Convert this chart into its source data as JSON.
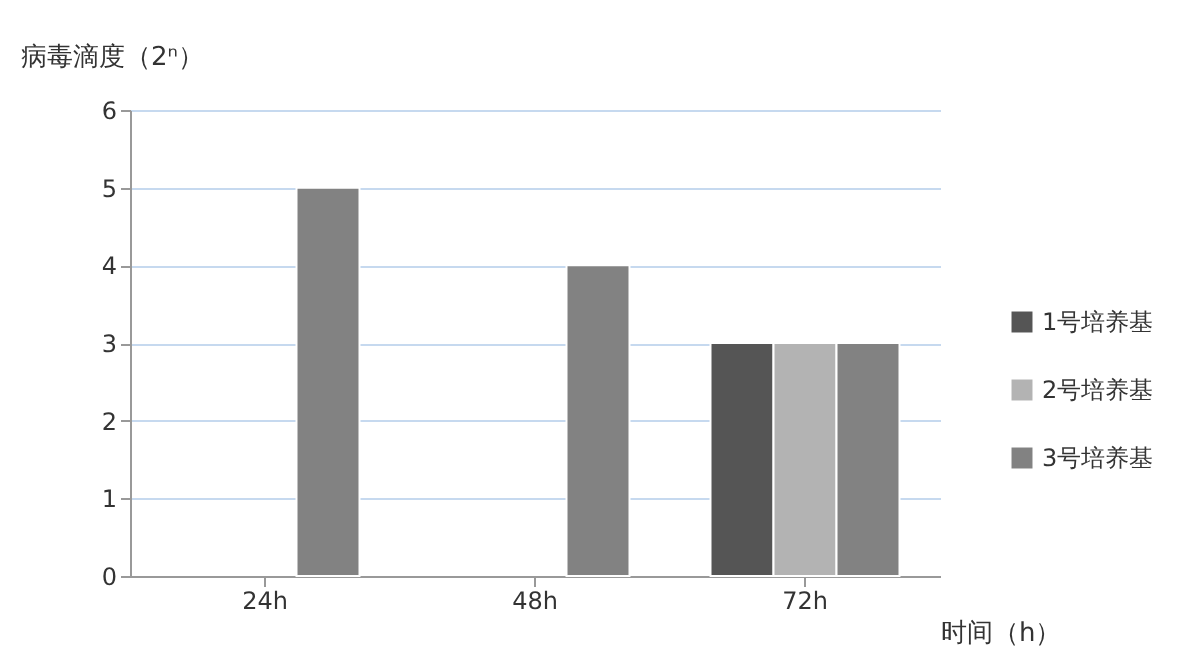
{
  "chart_data": {
    "type": "bar",
    "ylabel": "病毒滴度（2ⁿ）",
    "xlabel": "时间（h）",
    "categories": [
      "24h",
      "48h",
      "72h"
    ],
    "series": [
      {
        "name": "1号培养基",
        "color": "#555555",
        "values": [
          null,
          null,
          3
        ]
      },
      {
        "name": "2号培养基",
        "color": "#b3b3b3",
        "values": [
          null,
          null,
          3
        ]
      },
      {
        "name": "3号培养基",
        "color": "#828282",
        "values": [
          5,
          4,
          3
        ]
      }
    ],
    "ylim": [
      0,
      6
    ],
    "yticks": [
      0,
      1,
      2,
      3,
      4,
      5,
      6
    ],
    "grid": "y",
    "legend": "right"
  }
}
